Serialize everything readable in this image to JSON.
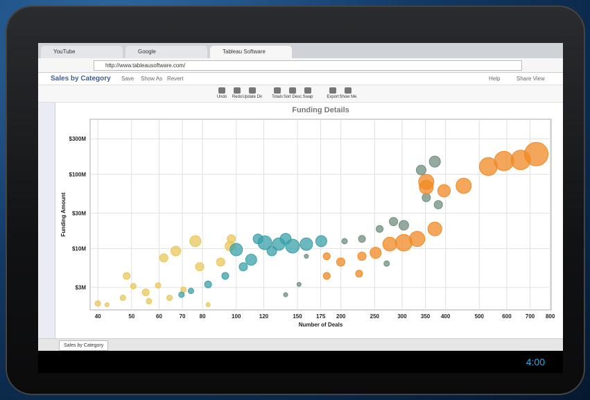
{
  "browser": {
    "tabs": [
      "YouTube",
      "Google",
      "Tableau Software"
    ],
    "url": "http://www.tableausoftware.com/"
  },
  "app": {
    "title": "Sales by Category",
    "menu": [
      "Save",
      "Show As",
      "Revert"
    ],
    "right_menu": [
      "Help",
      "Share View"
    ],
    "sheet_tab": "Sales by Category",
    "clock": "4:00"
  },
  "toolbar": [
    "Undo",
    "Redo",
    "Update Dir",
    "Totals",
    "Sort Desc",
    "Swap",
    "Export",
    "Show Me"
  ],
  "chart_data": {
    "type": "scatter",
    "title": "Funding Details",
    "x_label": "Number of Deals",
    "y_label": "Funding Amount",
    "x_log": true,
    "y_log": true,
    "grid": true,
    "xlim": [
      38,
      805
    ],
    "ylim": [
      1.5,
      550
    ],
    "xticks": [
      40,
      50,
      60,
      70,
      80,
      100,
      120,
      150,
      175,
      200,
      250,
      300,
      350,
      400,
      500,
      600,
      700,
      800
    ],
    "yticks": [
      {
        "value": 3,
        "label": "$3M"
      },
      {
        "value": 10,
        "label": "$10M"
      },
      {
        "value": 30,
        "label": "$30M"
      },
      {
        "value": 100,
        "label": "$100M"
      },
      {
        "value": 300,
        "label": "$300M"
      }
    ],
    "series": [
      {
        "color": "#e8c75a",
        "x": [
          40,
          42.5,
          48.4,
          47.2,
          50.6,
          54.9,
          56.1,
          61.9,
          67.0,
          76.3,
          78.5,
          90.2,
          95.9,
          96.8,
          59.6,
          64.3,
          70.5,
          83.0
        ],
        "y": [
          1.83,
          1.76,
          4.3,
          2.18,
          3.13,
          2.58,
          1.96,
          7.5,
          9.3,
          12.6,
          5.7,
          6.6,
          10.8,
          13.5,
          3.2,
          2.18,
          2.8,
          1.76
        ],
        "sizes": [
          4,
          3,
          5,
          4,
          4,
          5,
          4,
          6,
          7,
          8,
          6,
          6,
          7,
          6,
          4,
          4,
          4,
          3
        ]
      },
      {
        "color": "#3aa0a8",
        "x": [
          100,
          110.4,
          120.9,
          132.5,
          145.2,
          159.1,
          175.6,
          126.6,
          104.8,
          93.0,
          83.0,
          74.1,
          69.6,
          138.7,
          115.5
        ],
        "y": [
          9.7,
          7.1,
          12.0,
          11.5,
          10.8,
          11.5,
          12.6,
          9.3,
          5.7,
          4.3,
          3.3,
          2.7,
          2.4,
          13.5,
          13.5
        ],
        "sizes": [
          9,
          8,
          10,
          9,
          10,
          9,
          8,
          7,
          6,
          5,
          5,
          4,
          4,
          8,
          7
        ]
      },
      {
        "color": "#6e8f7e",
        "x": [
          340.3,
          372.6,
          381.3,
          352.0,
          283.4,
          303.3,
          258.5,
          229.9,
          204.9,
          270.8,
          151.6,
          138.7,
          159.1
        ],
        "y": [
          114,
          148,
          39,
          48.6,
          23.1,
          20.6,
          18.4,
          13.5,
          12.6,
          6.3,
          3.3,
          2.4,
          7.9
        ],
        "sizes": [
          7,
          8,
          6,
          6,
          6,
          7,
          5,
          5,
          4,
          4,
          3,
          3,
          3
        ]
      },
      {
        "color": "#f08a24",
        "x": [
          729.6,
          658,
          589,
          531,
          451,
          396,
          352,
          352,
          372.6,
          331.4,
          303.3,
          276.4,
          251.8,
          225.6,
          199.8,
          182.1,
          182.1,
          229.9
        ],
        "y": [
          187,
          156,
          151,
          127,
          70,
          60,
          79,
          67,
          18.4,
          13.5,
          12,
          11.5,
          8.8,
          4.6,
          6.6,
          4.3,
          7.9,
          7.9
        ],
        "sizes": [
          17,
          14,
          14,
          13,
          11,
          9,
          11,
          10,
          10,
          11,
          12,
          10,
          8,
          5,
          6,
          5,
          5,
          6
        ]
      }
    ]
  }
}
